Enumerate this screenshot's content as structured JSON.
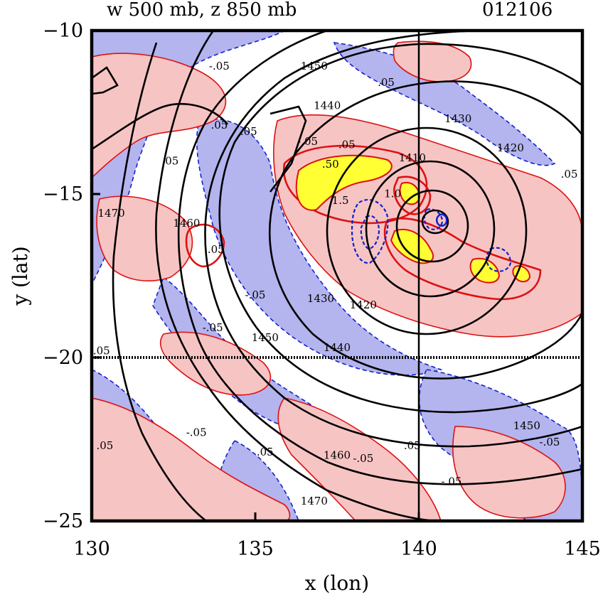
{
  "chart_data": {
    "type": "contour",
    "title_left": "w 500 mb, z 850 mb",
    "title_right": "012106",
    "xlabel": "x (lon)",
    "ylabel": "y (lat)",
    "xlim": [
      130,
      145
    ],
    "ylim": [
      -25,
      -10
    ],
    "xticks": [
      "130",
      "135",
      "140",
      "145"
    ],
    "yticks": [
      "-10",
      "-15",
      "-20",
      "-25"
    ],
    "cross_section_lines": {
      "lon": 140,
      "lat": -20
    },
    "fill_colors": {
      "positive_w": "#f7c4c4",
      "negative_w": "#b4b4ee",
      "strong_positive_w": "#ffff33",
      "background": "#ffffff"
    },
    "line_colors": {
      "w_positive": "#dd1111",
      "w_negative": "#1122cc",
      "z": "#000000"
    },
    "storm_center": {
      "lon": 140.7,
      "lat": -15.8
    },
    "z_contour_labels": [
      "1410",
      "1420",
      "1430",
      "1440",
      "1450",
      "1460",
      "1470"
    ],
    "w_contour_labels": [
      ".05",
      "-.05",
      "1.0",
      "1.5"
    ],
    "z_labels": [
      {
        "text": "1450",
        "lon": 136.8,
        "lat": -11.2
      },
      {
        "text": "1440",
        "lon": 137.2,
        "lat": -12.4
      },
      {
        "text": "1430",
        "lon": 141.2,
        "lat": -12.8
      },
      {
        "text": "1420",
        "lon": 142.8,
        "lat": -13.7
      },
      {
        "text": "1410",
        "lon": 139.8,
        "lat": -14.0
      },
      {
        "text": "1430",
        "lon": 137.0,
        "lat": -18.3
      },
      {
        "text": "1420",
        "lon": 138.3,
        "lat": -18.5
      },
      {
        "text": "1440",
        "lon": 137.5,
        "lat": -19.8
      },
      {
        "text": "1450",
        "lon": 135.3,
        "lat": -19.5
      },
      {
        "text": "1460",
        "lon": 132.9,
        "lat": -16.0
      },
      {
        "text": "1470",
        "lon": 130.6,
        "lat": -15.7
      },
      {
        "text": "1450",
        "lon": 143.3,
        "lat": -22.2
      },
      {
        "text": "1460",
        "lon": 137.5,
        "lat": -23.1
      },
      {
        "text": "1470",
        "lon": 136.8,
        "lat": -24.5
      }
    ],
    "w_labels": [
      {
        "text": "-.05",
        "lon": 133.9,
        "lat": -11.2
      },
      {
        "text": ".05",
        "lon": 139.0,
        "lat": -11.7
      },
      {
        "text": ".05",
        "lon": 134.8,
        "lat": -13.2
      },
      {
        "text": ".05",
        "lon": 133.9,
        "lat": -13.0
      },
      {
        "text": ".05",
        "lon": 132.4,
        "lat": -14.1
      },
      {
        "text": "-.05",
        "lon": 136.6,
        "lat": -13.5
      },
      {
        "text": ".05",
        "lon": 137.8,
        "lat": -13.6
      },
      {
        "text": "1.5",
        "lon": 137.6,
        "lat": -15.3
      },
      {
        "text": "1.0",
        "lon": 139.2,
        "lat": -15.1
      },
      {
        "text": ".50",
        "lon": 137.3,
        "lat": -14.2
      },
      {
        "text": "-.05",
        "lon": 135.0,
        "lat": -18.2
      },
      {
        "text": ".05",
        "lon": 133.8,
        "lat": -16.8
      },
      {
        "text": "-.05",
        "lon": 133.7,
        "lat": -19.2
      },
      {
        "text": ".05",
        "lon": 130.3,
        "lat": -19.9
      },
      {
        "text": ".05",
        "lon": 130.4,
        "lat": -22.8
      },
      {
        "text": "-.05",
        "lon": 133.2,
        "lat": -22.4
      },
      {
        "text": ".05",
        "lon": 135.3,
        "lat": -23.0
      },
      {
        "text": "-.05",
        "lon": 138.3,
        "lat": -23.2
      },
      {
        "text": ".05",
        "lon": 139.8,
        "lat": -22.8
      },
      {
        "text": "-.05",
        "lon": 141.0,
        "lat": -23.9
      },
      {
        "text": "-.05",
        "lon": 144.0,
        "lat": -22.7
      },
      {
        "text": ".05",
        "lon": 144.6,
        "lat": -14.5
      }
    ]
  }
}
